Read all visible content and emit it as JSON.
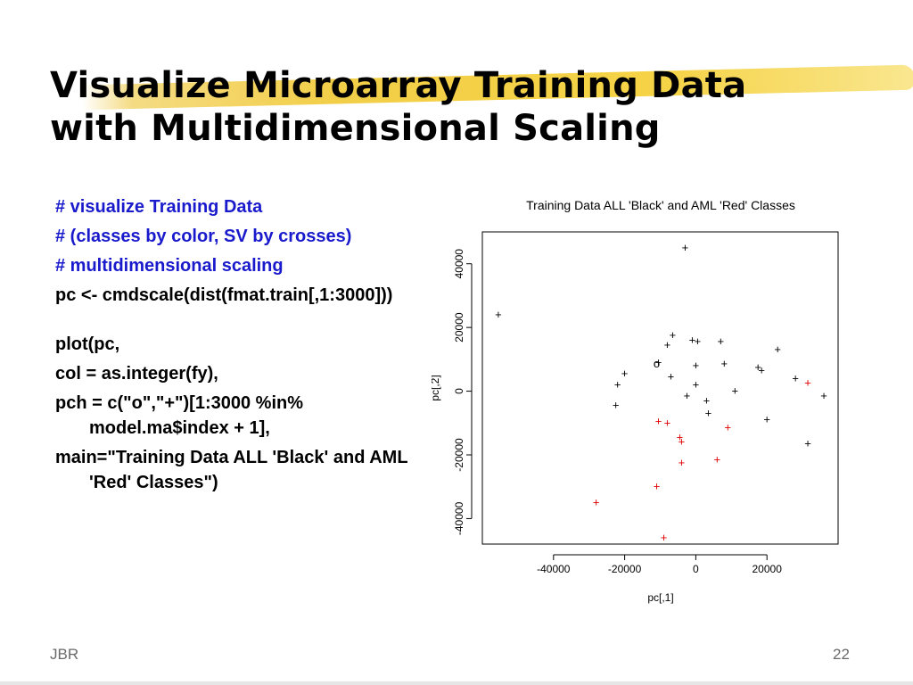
{
  "slide": {
    "title_line1": "Visualize Microarray Training Data",
    "title_line2": "with Multidimensional Scaling",
    "footer_left": "JBR",
    "page_number": "22"
  },
  "code": {
    "comment1": "# visualize Training Data",
    "comment2": "# (classes by color, SV by crosses)",
    "comment3": "# multidimensional scaling",
    "line1": "pc <- cmdscale(dist(fmat.train[,1:3000]))",
    "line2": "plot(pc,",
    "line3": "col = as.integer(fy),",
    "line4": "pch = c(\"o\",\"+\")[1:3000 %in% model.ma$index + 1],",
    "line5": "main=\"Training Data ALL 'Black' and AML 'Red' Classes\")"
  },
  "colors": {
    "comment": "#1a1acd",
    "ALL": "#000000",
    "AML": "#e00000",
    "highlight": "#f0c628"
  },
  "chart_data": {
    "type": "scatter",
    "title": "Training Data ALL 'Black' and AML 'Red' Classes",
    "xlabel": "pc[,1]",
    "ylabel": "pc[,2]",
    "xlim": [
      -60000,
      40000
    ],
    "ylim": [
      -48000,
      50000
    ],
    "xticks": [
      "-40000",
      "-20000",
      "0",
      "20000"
    ],
    "yticks": [
      "-40000",
      "-20000",
      "0",
      "20000",
      "40000"
    ],
    "xtick_values": [
      -40000,
      -20000,
      0,
      20000
    ],
    "ytick_values": [
      -40000,
      -20000,
      0,
      20000,
      40000
    ],
    "series": [
      {
        "color": "#000000",
        "points": [
          {
            "x": -55500,
            "y": 24000,
            "symbol": "+"
          },
          {
            "x": -3000,
            "y": 45000,
            "symbol": "+"
          },
          {
            "x": -6500,
            "y": 17500,
            "symbol": "+"
          },
          {
            "x": -8000,
            "y": 14500,
            "symbol": "+"
          },
          {
            "x": -11000,
            "y": 8500,
            "symbol": "o"
          },
          {
            "x": -10500,
            "y": 9000,
            "symbol": "+"
          },
          {
            "x": -1000,
            "y": 16000,
            "symbol": "+"
          },
          {
            "x": 500,
            "y": 15500,
            "symbol": "+"
          },
          {
            "x": 7000,
            "y": 15500,
            "symbol": "+"
          },
          {
            "x": -20000,
            "y": 5500,
            "symbol": "+"
          },
          {
            "x": -7000,
            "y": 4500,
            "symbol": "+"
          },
          {
            "x": 0,
            "y": 8000,
            "symbol": "+"
          },
          {
            "x": 8000,
            "y": 8500,
            "symbol": "+"
          },
          {
            "x": 17500,
            "y": 7500,
            "symbol": "+"
          },
          {
            "x": 18500,
            "y": 6500,
            "symbol": "+"
          },
          {
            "x": 23000,
            "y": 13000,
            "symbol": "+"
          },
          {
            "x": 28000,
            "y": 4000,
            "symbol": "+"
          },
          {
            "x": -22000,
            "y": 2000,
            "symbol": "+"
          },
          {
            "x": 0,
            "y": 2000,
            "symbol": "+"
          },
          {
            "x": -2500,
            "y": -1500,
            "symbol": "+"
          },
          {
            "x": 3000,
            "y": -3000,
            "symbol": "+"
          },
          {
            "x": 11000,
            "y": 0,
            "symbol": "+"
          },
          {
            "x": 36000,
            "y": -1500,
            "symbol": "+"
          },
          {
            "x": -22500,
            "y": -4500,
            "symbol": "+"
          },
          {
            "x": 3500,
            "y": -7000,
            "symbol": "+"
          },
          {
            "x": 20000,
            "y": -9000,
            "symbol": "+"
          },
          {
            "x": 31500,
            "y": -16500,
            "symbol": "+"
          }
        ]
      },
      {
        "color": "#e00000",
        "points": [
          {
            "x": 31500,
            "y": 2500,
            "symbol": "+"
          },
          {
            "x": -10500,
            "y": -9500,
            "symbol": "+"
          },
          {
            "x": -8000,
            "y": -10000,
            "symbol": "+"
          },
          {
            "x": 9000,
            "y": -11500,
            "symbol": "+"
          },
          {
            "x": -4500,
            "y": -14500,
            "symbol": "+"
          },
          {
            "x": -4000,
            "y": -16000,
            "symbol": "+"
          },
          {
            "x": 6000,
            "y": -21500,
            "symbol": "+"
          },
          {
            "x": -4000,
            "y": -22500,
            "symbol": "+"
          },
          {
            "x": -11000,
            "y": -30000,
            "symbol": "+"
          },
          {
            "x": -28000,
            "y": -35000,
            "symbol": "+"
          },
          {
            "x": -9000,
            "y": -46000,
            "symbol": "+"
          }
        ]
      }
    ]
  }
}
